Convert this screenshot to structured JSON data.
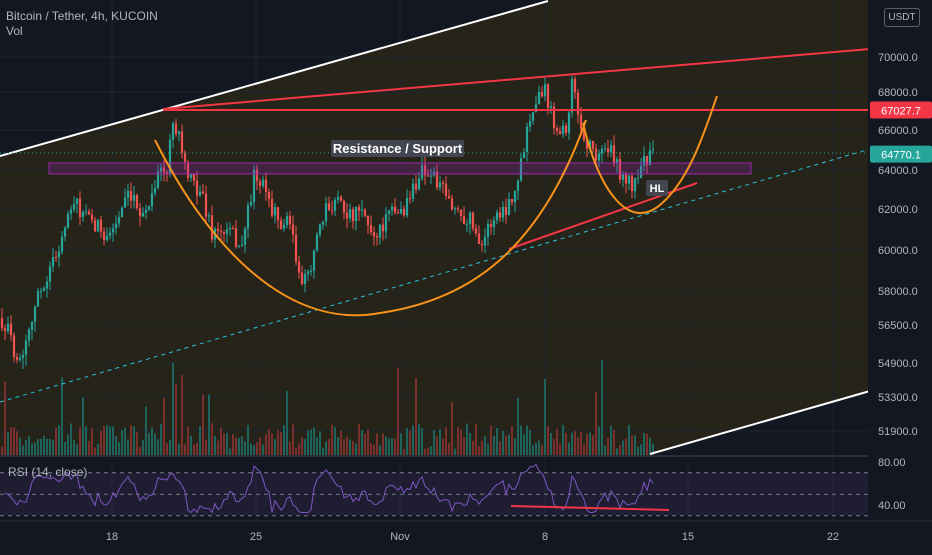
{
  "header": {
    "title": "Bitcoin / Tether, 4h, KUCOIN",
    "volume_label": "Vol",
    "rsi_label": "RSI (14, close)"
  },
  "currency_badge": "USDT",
  "chart_data": {
    "type": "candlestick",
    "price_axis": {
      "ticks": [
        "70000.0",
        "68000.0",
        "66000.0",
        "64000.0",
        "62000.0",
        "60000.0",
        "58000.0",
        "56500.0",
        "54900.0",
        "53300.0",
        "51900.0"
      ],
      "tick_values": [
        70000,
        68000,
        66000,
        64000,
        62000,
        60000,
        58000,
        56500,
        54900,
        53300,
        51900
      ]
    },
    "rsi_axis": {
      "ticks": [
        "80.00",
        "40.00"
      ],
      "tick_values": [
        80,
        40
      ],
      "bands": [
        70,
        50,
        30
      ]
    },
    "time_axis": {
      "ticks": [
        "18",
        "25",
        "Nov",
        "8",
        "15",
        "22"
      ]
    },
    "price_labels": [
      {
        "text": "67027.7",
        "value": 67027.7,
        "color": "#f23645"
      },
      {
        "text": "64770.1",
        "value": 64770.1,
        "color": "#26a69a"
      }
    ],
    "annotations": [
      {
        "text": "Resistance / Support",
        "kind": "label"
      },
      {
        "text": "HL",
        "kind": "label"
      }
    ],
    "series": [
      {
        "name": "price",
        "kind": "candles",
        "start": 57000,
        "end": 64770,
        "approx_range": [
          53500,
          69000
        ]
      },
      {
        "name": "volume",
        "kind": "bars"
      },
      {
        "name": "rsi",
        "kind": "line",
        "approx_range": [
          35,
          78
        ]
      }
    ],
    "colors": {
      "up": "#26a69a",
      "down": "#ef5350",
      "channel": "#ffffff",
      "trend": "#f23645",
      "curve": "#f7931a",
      "zone": "#9c27b0",
      "rsi": "#7e57c2"
    }
  }
}
